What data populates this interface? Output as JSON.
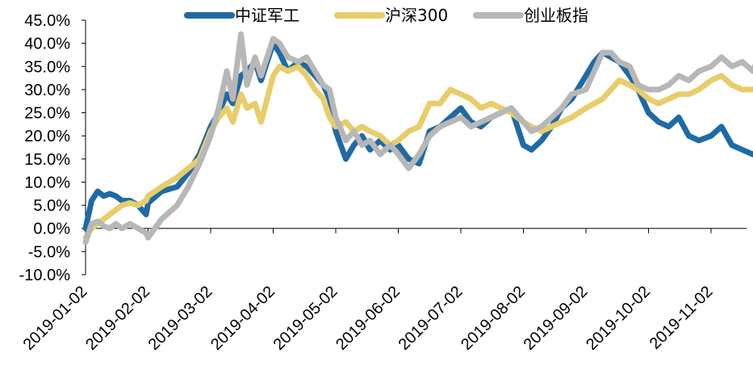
{
  "chart_data": {
    "type": "line",
    "title": "",
    "xlabel": "",
    "ylabel": "",
    "ylim": [
      -10,
      45
    ],
    "y_ticks": [
      "45.0%",
      "40.0%",
      "35.0%",
      "30.0%",
      "25.0%",
      "20.0%",
      "15.0%",
      "10.0%",
      "5.0%",
      "0.0%",
      "-5.0%",
      "-10.0%"
    ],
    "x_ticks": [
      "2019-01-02",
      "2019-02-02",
      "2019-03-02",
      "2019-04-02",
      "2019-05-02",
      "2019-06-02",
      "2019-07-02",
      "2019-08-02",
      "2019-09-02",
      "2019-10-02",
      "2019-11-02"
    ],
    "legend_position": "top",
    "grid": false,
    "series": [
      {
        "name": "中证军工",
        "color": "#1F6AA5",
        "x": [
          "2019-01-02",
          "2019-01-05",
          "2019-01-08",
          "2019-01-11",
          "2019-01-14",
          "2019-01-17",
          "2019-01-20",
          "2019-01-24",
          "2019-01-28",
          "2019-02-01",
          "2019-02-02",
          "2019-02-08",
          "2019-02-15",
          "2019-02-20",
          "2019-02-25",
          "2019-03-02",
          "2019-03-06",
          "2019-03-10",
          "2019-03-13",
          "2019-03-17",
          "2019-03-20",
          "2019-03-24",
          "2019-03-27",
          "2019-04-02",
          "2019-04-05",
          "2019-04-09",
          "2019-04-14",
          "2019-04-18",
          "2019-04-22",
          "2019-04-26",
          "2019-04-29",
          "2019-05-02",
          "2019-05-07",
          "2019-05-11",
          "2019-05-15",
          "2019-05-19",
          "2019-05-24",
          "2019-05-29",
          "2019-06-02",
          "2019-06-07",
          "2019-06-12",
          "2019-06-17",
          "2019-06-22",
          "2019-06-27",
          "2019-07-02",
          "2019-07-07",
          "2019-07-12",
          "2019-07-17",
          "2019-07-22",
          "2019-07-27",
          "2019-08-02",
          "2019-08-06",
          "2019-08-11",
          "2019-08-16",
          "2019-08-21",
          "2019-08-26",
          "2019-09-02",
          "2019-09-06",
          "2019-09-10",
          "2019-09-14",
          "2019-09-18",
          "2019-09-23",
          "2019-09-27",
          "2019-10-02",
          "2019-10-07",
          "2019-10-12",
          "2019-10-17",
          "2019-10-22",
          "2019-10-27",
          "2019-11-02",
          "2019-11-07",
          "2019-11-12",
          "2019-11-17",
          "2019-11-22",
          "2019-11-26",
          "2019-11-28"
        ],
        "values": [
          0,
          6,
          8,
          7,
          7.5,
          7,
          6,
          6,
          5,
          3,
          5.5,
          8,
          9,
          12,
          16,
          22,
          25,
          29,
          27,
          33,
          34,
          36,
          32,
          40,
          38,
          34,
          36,
          35,
          33,
          31,
          28,
          21,
          15,
          18,
          20,
          17,
          19,
          17,
          18,
          15,
          14,
          21,
          22,
          24,
          26,
          23,
          22,
          24,
          25,
          26,
          18,
          17,
          19,
          22,
          26,
          28,
          33,
          36,
          38,
          37,
          36,
          33,
          30,
          25,
          23,
          22,
          24,
          20,
          19,
          20,
          22,
          18,
          17,
          16,
          17,
          17
        ]
      },
      {
        "name": "沪深300",
        "color": "#E8CD6A",
        "x": [
          "2019-01-02",
          "2019-01-05",
          "2019-01-08",
          "2019-01-11",
          "2019-01-14",
          "2019-01-17",
          "2019-01-20",
          "2019-01-24",
          "2019-01-28",
          "2019-02-01",
          "2019-02-02",
          "2019-02-08",
          "2019-02-15",
          "2019-02-20",
          "2019-02-25",
          "2019-03-02",
          "2019-03-06",
          "2019-03-10",
          "2019-03-13",
          "2019-03-17",
          "2019-03-20",
          "2019-03-24",
          "2019-03-27",
          "2019-04-02",
          "2019-04-05",
          "2019-04-09",
          "2019-04-14",
          "2019-04-18",
          "2019-04-22",
          "2019-04-26",
          "2019-04-29",
          "2019-05-02",
          "2019-05-07",
          "2019-05-11",
          "2019-05-15",
          "2019-05-19",
          "2019-05-24",
          "2019-05-29",
          "2019-06-02",
          "2019-06-07",
          "2019-06-12",
          "2019-06-17",
          "2019-06-22",
          "2019-06-27",
          "2019-07-02",
          "2019-07-07",
          "2019-07-12",
          "2019-07-17",
          "2019-07-22",
          "2019-07-27",
          "2019-08-02",
          "2019-08-06",
          "2019-08-11",
          "2019-08-16",
          "2019-08-21",
          "2019-08-26",
          "2019-09-02",
          "2019-09-06",
          "2019-09-10",
          "2019-09-14",
          "2019-09-18",
          "2019-09-23",
          "2019-09-27",
          "2019-10-02",
          "2019-10-07",
          "2019-10-12",
          "2019-10-17",
          "2019-10-22",
          "2019-10-27",
          "2019-11-02",
          "2019-11-07",
          "2019-11-12",
          "2019-11-17",
          "2019-11-22",
          "2019-11-26",
          "2019-11-28"
        ],
        "values": [
          -2,
          0,
          1,
          2,
          3,
          4,
          5,
          5.5,
          5,
          6,
          7,
          9,
          11,
          13,
          15,
          21,
          24,
          26,
          23,
          29,
          26,
          27,
          23,
          33,
          35,
          34,
          35,
          33,
          30,
          28,
          24,
          22,
          23,
          21,
          22,
          21,
          20,
          18,
          19,
          21,
          22,
          27,
          27,
          30,
          29,
          28,
          26,
          27,
          26,
          25,
          23,
          22,
          21,
          22,
          23,
          24,
          26,
          27,
          28,
          30,
          32,
          31,
          30,
          28,
          27,
          28,
          29,
          29,
          30,
          32,
          33,
          31,
          30,
          30,
          31,
          28
        ]
      },
      {
        "name": "创业板指",
        "color": "#B7B7B7",
        "x": [
          "2019-01-02",
          "2019-01-05",
          "2019-01-08",
          "2019-01-11",
          "2019-01-14",
          "2019-01-17",
          "2019-01-20",
          "2019-01-24",
          "2019-01-28",
          "2019-02-01",
          "2019-02-02",
          "2019-02-08",
          "2019-02-15",
          "2019-02-20",
          "2019-02-25",
          "2019-03-02",
          "2019-03-06",
          "2019-03-10",
          "2019-03-13",
          "2019-03-17",
          "2019-03-20",
          "2019-03-24",
          "2019-03-27",
          "2019-04-02",
          "2019-04-05",
          "2019-04-09",
          "2019-04-14",
          "2019-04-18",
          "2019-04-22",
          "2019-04-26",
          "2019-04-29",
          "2019-05-02",
          "2019-05-07",
          "2019-05-11",
          "2019-05-15",
          "2019-05-19",
          "2019-05-24",
          "2019-05-29",
          "2019-06-02",
          "2019-06-07",
          "2019-06-12",
          "2019-06-17",
          "2019-06-22",
          "2019-06-27",
          "2019-07-02",
          "2019-07-07",
          "2019-07-12",
          "2019-07-17",
          "2019-07-22",
          "2019-07-27",
          "2019-08-02",
          "2019-08-06",
          "2019-08-11",
          "2019-08-16",
          "2019-08-21",
          "2019-08-26",
          "2019-09-02",
          "2019-09-06",
          "2019-09-10",
          "2019-09-14",
          "2019-09-18",
          "2019-09-23",
          "2019-09-27",
          "2019-10-02",
          "2019-10-07",
          "2019-10-12",
          "2019-10-17",
          "2019-10-22",
          "2019-10-27",
          "2019-11-02",
          "2019-11-07",
          "2019-11-12",
          "2019-11-17",
          "2019-11-22",
          "2019-11-26",
          "2019-11-28"
        ],
        "values": [
          -3,
          1,
          1.5,
          0.5,
          0,
          1,
          0,
          1,
          0,
          -1,
          -2,
          2,
          5,
          9,
          14,
          20,
          26,
          34,
          28,
          42,
          31,
          37,
          33,
          41,
          40,
          37,
          36,
          37,
          34,
          31,
          30,
          24,
          19,
          21,
          18,
          19,
          16,
          18,
          16,
          13,
          16,
          20,
          22,
          23,
          24,
          22,
          23,
          24,
          25,
          26,
          23,
          21,
          22,
          24,
          26,
          29,
          30,
          34,
          38,
          38,
          36,
          35,
          31,
          30,
          30,
          31,
          33,
          32,
          34,
          35,
          37,
          35,
          36,
          34,
          38,
          34
        ]
      }
    ]
  }
}
